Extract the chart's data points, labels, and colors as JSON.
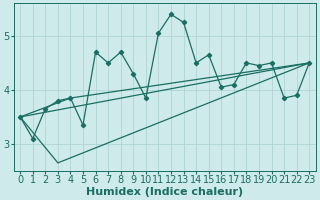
{
  "xlabel": "Humidex (Indice chaleur)",
  "background_color": "#ceeaea",
  "grid_color": "#afd4d4",
  "line_color": "#1a6e64",
  "xlim": [
    -0.5,
    23.5
  ],
  "ylim": [
    2.5,
    5.6
  ],
  "yticks": [
    3,
    4,
    5
  ],
  "xticks": [
    0,
    1,
    2,
    3,
    4,
    5,
    6,
    7,
    8,
    9,
    10,
    11,
    12,
    13,
    14,
    15,
    16,
    17,
    18,
    19,
    20,
    21,
    22,
    23
  ],
  "series1_x": [
    0,
    1,
    2,
    3,
    4,
    5,
    6,
    7,
    8,
    9,
    10,
    11,
    12,
    13,
    14,
    15,
    16,
    17,
    18,
    19,
    20,
    21,
    22,
    23
  ],
  "series1_y": [
    3.5,
    3.1,
    3.65,
    3.8,
    3.85,
    3.35,
    4.7,
    4.5,
    4.7,
    4.3,
    3.85,
    5.05,
    5.4,
    5.25,
    4.5,
    4.65,
    4.05,
    4.1,
    4.5,
    4.45,
    4.5,
    3.85,
    3.9,
    4.5
  ],
  "line2_x": [
    0,
    3,
    23
  ],
  "line2_y": [
    3.5,
    2.65,
    4.5
  ],
  "line3_x": [
    0,
    4,
    23
  ],
  "line3_y": [
    3.5,
    3.85,
    4.5
  ],
  "line4_x": [
    0,
    23
  ],
  "line4_y": [
    3.5,
    4.5
  ],
  "font_size_label": 8,
  "font_size_tick": 7
}
